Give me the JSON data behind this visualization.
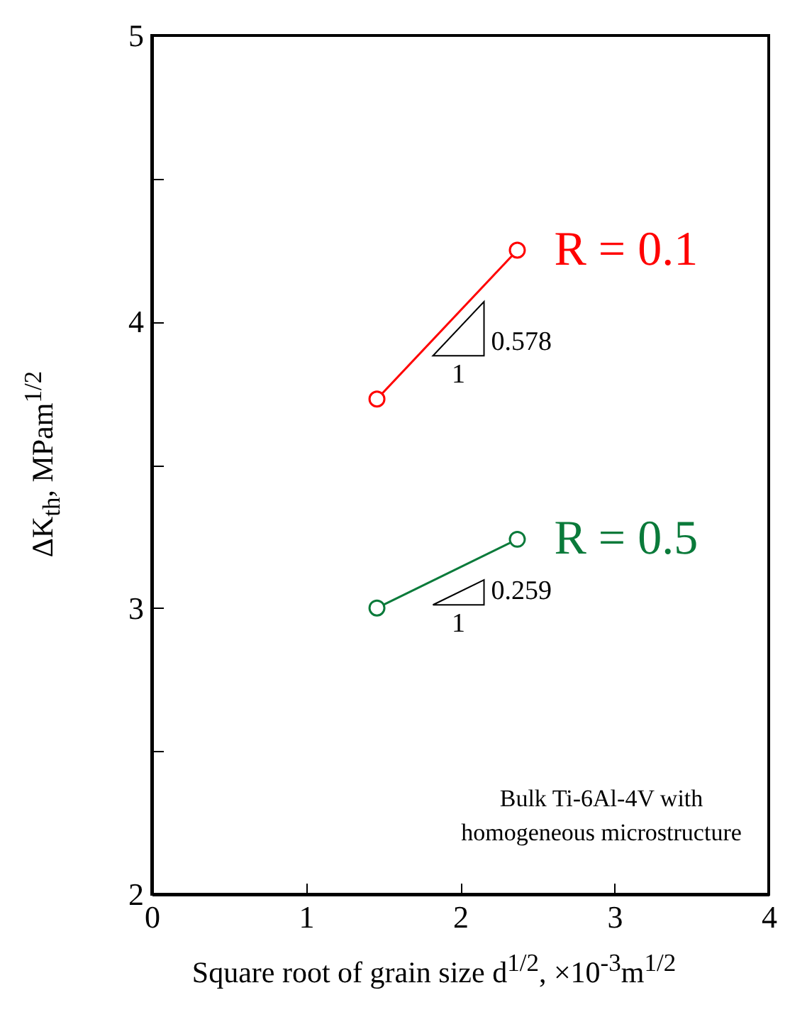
{
  "chart_data": {
    "type": "line",
    "xlabel": "Square root of grain size d$^{1/2}$, ×10$^{-3}$m$^{1/2}$",
    "ylabel": "ΔK$_{th}$, MPam$^{1/2}$",
    "x": [
      1.46,
      2.37
    ],
    "series": [
      {
        "name": "R = 0.1",
        "color": "#ff0000",
        "values": [
          3.73,
          4.25
        ]
      },
      {
        "name": "R = 0.5",
        "color": "#0a7a3a",
        "values": [
          3.0,
          3.24
        ]
      }
    ],
    "xlim": [
      0,
      4
    ],
    "ylim": [
      2,
      5
    ],
    "xticks": [
      0,
      1,
      2,
      3,
      4
    ],
    "yticks": [
      2,
      {
        "value": 2.5,
        "label": null
      },
      3,
      {
        "value": 3.5,
        "label": null
      },
      4,
      {
        "value": 4.5,
        "label": null
      },
      5
    ],
    "marker": "circle",
    "annotations": [
      "0.578",
      "1",
      "0.259",
      "1",
      "Bulk Ti-6Al-4V with\nhomogeneous microstructure"
    ]
  }
}
